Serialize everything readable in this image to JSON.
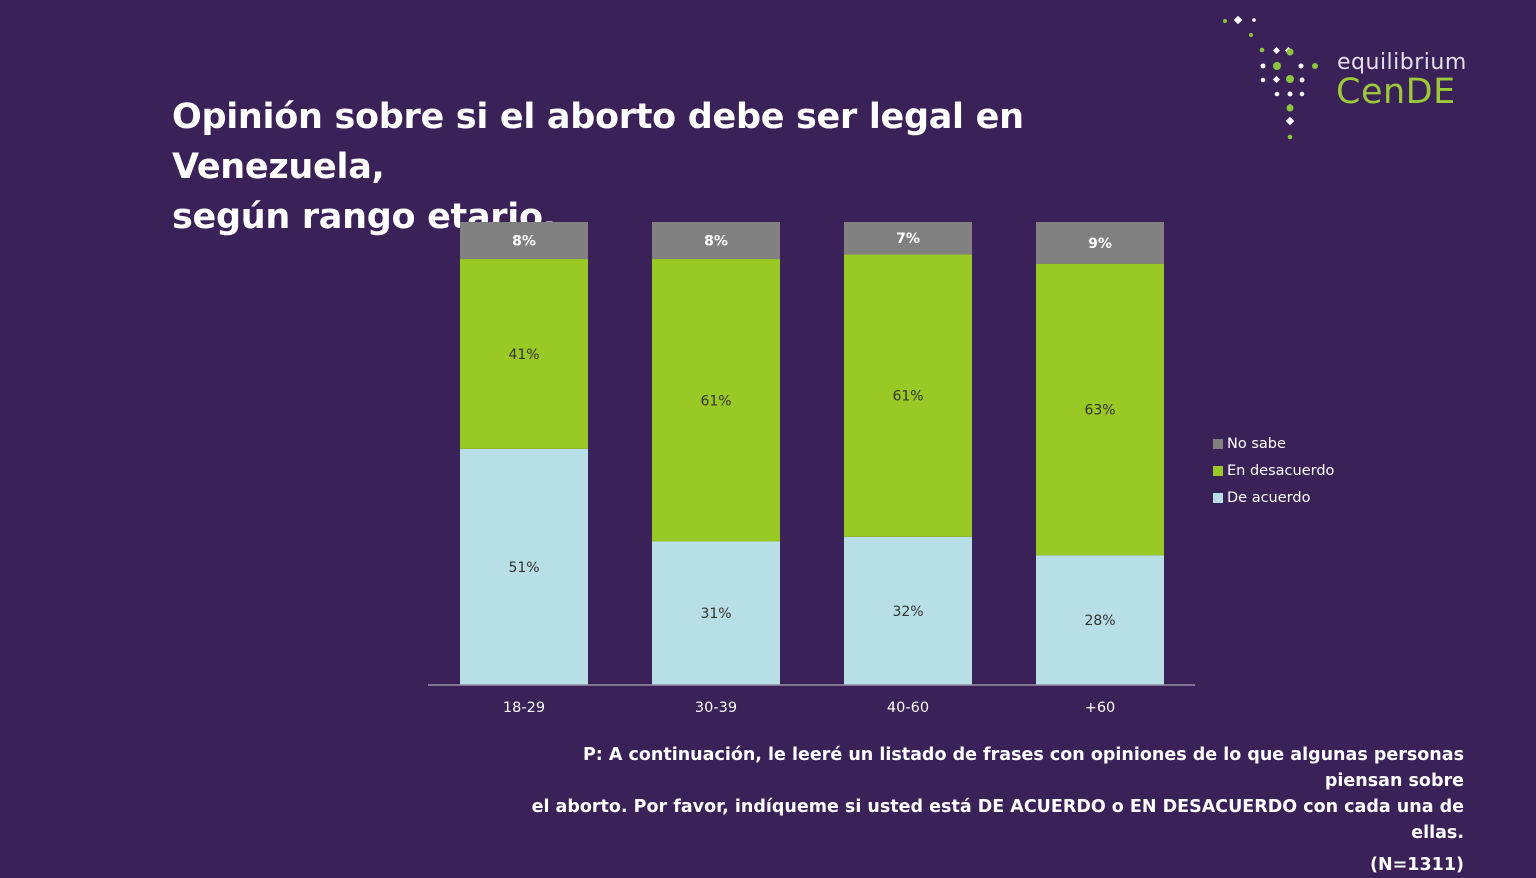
{
  "title_lines": [
    "Opinión sobre si el aborto debe ser legal en Venezuela,",
    "según rango etario."
  ],
  "brand": {
    "top": "equilibrium",
    "bottom": "CenDE"
  },
  "footnote": {
    "lines": [
      "P: A continuación, le leeré un listado de frases con opiniones de lo que algunas personas piensan sobre",
      "el aborto. Por favor, indíqueme si usted está DE ACUERDO o EN DESACUERDO con cada una de ellas."
    ],
    "n": "(N=1311)"
  },
  "chart_data": {
    "type": "bar",
    "stacked": true,
    "categories": [
      "18-29",
      "30-39",
      "40-60",
      "+60"
    ],
    "series": [
      {
        "name": "De acuerdo",
        "color": "#b8dfe6",
        "values": [
          51,
          31,
          32,
          28
        ],
        "labels": [
          "51%",
          "31%",
          "32%",
          "28%"
        ]
      },
      {
        "name": "En desacuerdo",
        "color": "#99c924",
        "values": [
          41,
          61,
          61,
          63
        ],
        "labels": [
          "41%",
          "61%",
          "61%",
          "63%"
        ]
      },
      {
        "name": "No sabe",
        "color": "#808080",
        "values": [
          8,
          8,
          7,
          9
        ],
        "labels": [
          "8%",
          "8%",
          "7%",
          "9%"
        ]
      }
    ],
    "legend_order": [
      "No sabe",
      "En desacuerdo",
      "De acuerdo"
    ],
    "legend_position": "right",
    "grid": false
  }
}
